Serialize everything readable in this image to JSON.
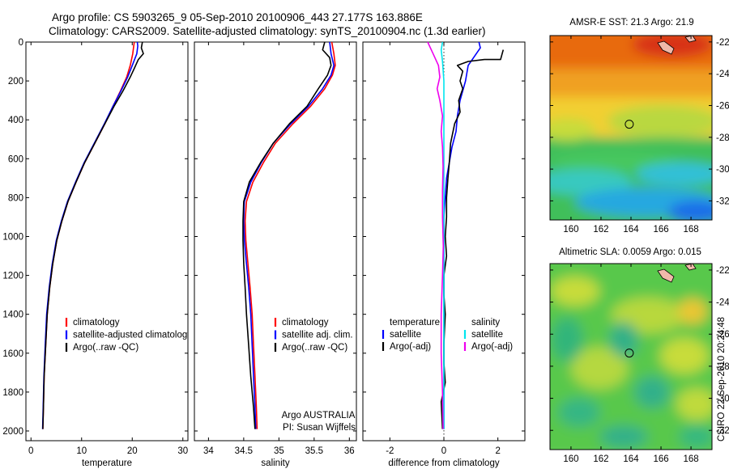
{
  "figure": {
    "title_line1": "Argo profile: CS 5903265_9 05-Sep-2010 20100906_443 27.177S 163.886E",
    "title_line2": "Climatology: CARS2009. Satellite-adjusted climatology: synTS_20100904.nc (1.3d earlier)",
    "side_label": "CSIRO 22-Sep-2010 20:24:48",
    "annotation_line1": "Argo AUSTRALIA",
    "annotation_line2": "PI: Susan Wijffels",
    "colors": {
      "climatology": "#ff0000",
      "satellite": "#0000ff",
      "argo": "#000000",
      "sat_salinity": "#00e5ee",
      "argo_salinity": "#ee00ee"
    }
  },
  "chart_data": [
    {
      "type": "line",
      "name": "temperature-panel",
      "xlabel": "temperature",
      "ylabel": "",
      "xlim": [
        -1,
        31
      ],
      "ylim": [
        2050,
        0
      ],
      "xticks": [
        "0",
        "10",
        "20",
        "30"
      ],
      "yticks": [
        "0",
        "200",
        "400",
        "600",
        "800",
        "1000",
        "1200",
        "1400",
        "1600",
        "1800",
        "2000"
      ],
      "legend": [
        "climatology",
        "satellite-adjusted climatology",
        "Argo(..raw -QC)"
      ],
      "legend_position": "bottom-left",
      "series": [
        {
          "name": "climatology",
          "color": "#ff0000",
          "points": [
            [
              20.4,
              0
            ],
            [
              20.3,
              20
            ],
            [
              20.1,
              60
            ],
            [
              19.6,
              120
            ],
            [
              18.9,
              180
            ],
            [
              17.7,
              250
            ],
            [
              16.2,
              330
            ],
            [
              14.6,
              420
            ],
            [
              12.6,
              520
            ],
            [
              10.6,
              620
            ],
            [
              8.9,
              720
            ],
            [
              7.3,
              820
            ],
            [
              6.1,
              920
            ],
            [
              5.1,
              1020
            ],
            [
              4.3,
              1140
            ],
            [
              3.7,
              1260
            ],
            [
              3.2,
              1400
            ],
            [
              2.9,
              1560
            ],
            [
              2.6,
              1720
            ],
            [
              2.45,
              1880
            ],
            [
              2.35,
              1990
            ]
          ]
        },
        {
          "name": "satellite-adjusted climatology",
          "color": "#0000ff",
          "points": [
            [
              21.0,
              0
            ],
            [
              21.1,
              20
            ],
            [
              20.9,
              60
            ],
            [
              20.0,
              120
            ],
            [
              19.1,
              180
            ],
            [
              17.8,
              250
            ],
            [
              16.2,
              330
            ],
            [
              14.5,
              420
            ],
            [
              12.5,
              520
            ],
            [
              10.5,
              620
            ],
            [
              8.8,
              720
            ],
            [
              7.2,
              820
            ],
            [
              6.0,
              920
            ],
            [
              5.0,
              1020
            ],
            [
              4.2,
              1140
            ],
            [
              3.6,
              1260
            ],
            [
              3.1,
              1400
            ],
            [
              2.8,
              1560
            ],
            [
              2.55,
              1720
            ],
            [
              2.4,
              1880
            ],
            [
              2.3,
              1990
            ]
          ]
        },
        {
          "name": "Argo(..raw -QC)",
          "color": "#000000",
          "points": [
            [
              22.0,
              0
            ],
            [
              21.8,
              30
            ],
            [
              22.2,
              60
            ],
            [
              21.2,
              90
            ],
            [
              20.5,
              130
            ],
            [
              19.6,
              180
            ],
            [
              18.2,
              250
            ],
            [
              16.4,
              330
            ],
            [
              14.6,
              420
            ],
            [
              12.6,
              520
            ],
            [
              10.6,
              620
            ],
            [
              8.9,
              720
            ],
            [
              7.3,
              820
            ],
            [
              6.1,
              920
            ],
            [
              5.1,
              1020
            ],
            [
              4.3,
              1140
            ],
            [
              3.7,
              1260
            ],
            [
              3.2,
              1400
            ],
            [
              2.9,
              1560
            ],
            [
              2.6,
              1720
            ],
            [
              2.45,
              1880
            ],
            [
              2.35,
              1990
            ]
          ]
        }
      ]
    },
    {
      "type": "line",
      "name": "salinity-panel",
      "xlabel": "salinity",
      "ylabel": "",
      "xlim": [
        33.8,
        36.1
      ],
      "ylim": [
        2050,
        0
      ],
      "xticks": [
        "34",
        "34.5",
        "35",
        "35.5",
        "36"
      ],
      "legend": [
        "climatology",
        "satellite adj. clim.",
        "Argo(..raw -QC)"
      ],
      "legend_position": "bottom-right",
      "series": [
        {
          "name": "climatology",
          "color": "#ff0000",
          "points": [
            [
              35.75,
              0
            ],
            [
              35.78,
              60
            ],
            [
              35.8,
              120
            ],
            [
              35.76,
              170
            ],
            [
              35.65,
              240
            ],
            [
              35.45,
              330
            ],
            [
              35.2,
              420
            ],
            [
              34.95,
              520
            ],
            [
              34.78,
              620
            ],
            [
              34.63,
              720
            ],
            [
              34.54,
              820
            ],
            [
              34.52,
              920
            ],
            [
              34.53,
              1020
            ],
            [
              34.56,
              1140
            ],
            [
              34.59,
              1260
            ],
            [
              34.62,
              1400
            ],
            [
              34.64,
              1560
            ],
            [
              34.66,
              1720
            ],
            [
              34.68,
              1880
            ],
            [
              34.69,
              1990
            ]
          ]
        },
        {
          "name": "satellite adj. clim.",
          "color": "#0000ff",
          "points": [
            [
              35.72,
              0
            ],
            [
              35.74,
              60
            ],
            [
              35.78,
              120
            ],
            [
              35.74,
              170
            ],
            [
              35.62,
              240
            ],
            [
              35.42,
              330
            ],
            [
              35.17,
              420
            ],
            [
              34.92,
              520
            ],
            [
              34.75,
              620
            ],
            [
              34.6,
              720
            ],
            [
              34.51,
              820
            ],
            [
              34.5,
              920
            ],
            [
              34.51,
              1020
            ],
            [
              34.54,
              1140
            ],
            [
              34.57,
              1260
            ],
            [
              34.6,
              1400
            ],
            [
              34.62,
              1560
            ],
            [
              34.64,
              1720
            ],
            [
              34.66,
              1880
            ],
            [
              34.67,
              1990
            ]
          ]
        },
        {
          "name": "Argo(..raw -QC)",
          "color": "#000000",
          "points": [
            [
              35.65,
              0
            ],
            [
              35.62,
              40
            ],
            [
              35.72,
              80
            ],
            [
              35.74,
              120
            ],
            [
              35.69,
              170
            ],
            [
              35.56,
              240
            ],
            [
              35.4,
              330
            ],
            [
              35.15,
              420
            ],
            [
              34.92,
              520
            ],
            [
              34.74,
              620
            ],
            [
              34.58,
              720
            ],
            [
              34.5,
              820
            ],
            [
              34.49,
              920
            ],
            [
              34.49,
              1020
            ],
            [
              34.5,
              1140
            ],
            [
              34.52,
              1260
            ],
            [
              34.54,
              1400
            ],
            [
              34.57,
              1560
            ],
            [
              34.6,
              1720
            ],
            [
              34.64,
              1880
            ],
            [
              34.66,
              1990
            ]
          ]
        }
      ]
    },
    {
      "type": "line",
      "name": "difference-panel",
      "xlabel": "difference from climatology",
      "ylabel": "",
      "xlim": [
        -3,
        3
      ],
      "ylim": [
        2050,
        0
      ],
      "xticks": [
        "-2",
        "0",
        "2"
      ],
      "legend_left_header": "temperature",
      "legend_right_header": "salinity",
      "legend": [
        "satellite",
        "Argo(-adj)",
        "satellite",
        "Argo(-adj)"
      ],
      "legend_position": "bottom",
      "series": [
        {
          "name": "satellite",
          "group": "temperature",
          "color": "#0000ff",
          "points": [
            [
              1.3,
              0
            ],
            [
              1.35,
              30
            ],
            [
              1.2,
              60
            ],
            [
              0.9,
              120
            ],
            [
              0.8,
              200
            ],
            [
              0.6,
              300
            ],
            [
              0.5,
              380
            ],
            [
              0.45,
              460
            ],
            [
              0.3,
              540
            ],
            [
              0.2,
              620
            ],
            [
              0.1,
              700
            ],
            [
              0.05,
              800
            ],
            [
              0.0,
              900
            ],
            [
              0.0,
              1000
            ],
            [
              0.0,
              1990
            ]
          ]
        },
        {
          "name": "Argo(-adj)",
          "group": "temperature",
          "color": "#000000",
          "points": [
            [
              2.2,
              40
            ],
            [
              2.1,
              90
            ],
            [
              1.5,
              90
            ],
            [
              0.9,
              100
            ],
            [
              0.5,
              120
            ],
            [
              0.7,
              150
            ],
            [
              0.6,
              200
            ],
            [
              0.7,
              240
            ],
            [
              0.55,
              300
            ],
            [
              0.6,
              360
            ],
            [
              0.4,
              420
            ],
            [
              0.25,
              520
            ],
            [
              0.2,
              620
            ],
            [
              0.15,
              700
            ],
            [
              0.1,
              800
            ],
            [
              0.1,
              900
            ],
            [
              0.05,
              1000
            ],
            [
              0.1,
              1100
            ],
            [
              0.0,
              1200
            ],
            [
              0.0,
              1300
            ],
            [
              0.05,
              1400
            ],
            [
              0.0,
              1550
            ],
            [
              0.0,
              1650
            ],
            [
              0.05,
              1750
            ],
            [
              -0.1,
              1850
            ],
            [
              -0.05,
              1990
            ]
          ]
        },
        {
          "name": "satellite",
          "group": "salinity",
          "color": "#00e5ee",
          "points": [
            [
              -0.05,
              0
            ],
            [
              -0.1,
              40
            ],
            [
              -0.05,
              100
            ],
            [
              0.0,
              200
            ],
            [
              0.0,
              300
            ],
            [
              0.0,
              1990
            ]
          ]
        },
        {
          "name": "Argo(-adj)",
          "group": "salinity",
          "color": "#ee00ee",
          "points": [
            [
              -0.6,
              0
            ],
            [
              -0.4,
              60
            ],
            [
              -0.2,
              120
            ],
            [
              -0.15,
              180
            ],
            [
              -0.25,
              240
            ],
            [
              -0.15,
              300
            ],
            [
              -0.05,
              380
            ],
            [
              -0.1,
              460
            ],
            [
              -0.05,
              540
            ],
            [
              -0.03,
              640
            ],
            [
              -0.05,
              760
            ],
            [
              -0.05,
              900
            ],
            [
              -0.02,
              1050
            ],
            [
              -0.05,
              1200
            ],
            [
              -0.1,
              1400
            ],
            [
              -0.1,
              1600
            ],
            [
              -0.05,
              1800
            ],
            [
              -0.03,
              1990
            ]
          ]
        }
      ]
    },
    {
      "type": "heatmap",
      "name": "sst-map",
      "title": "AMSR-E SST: 21.3 Argo: 21.9",
      "xlim": [
        158.6,
        169.4
      ],
      "ylim": [
        -33.2,
        -21.6
      ],
      "xticks": [
        "160",
        "162",
        "164",
        "166",
        "168"
      ],
      "yticks": [
        "-22",
        "-24",
        "-26",
        "-28",
        "-30",
        "-32"
      ],
      "marker": {
        "lon": 163.886,
        "lat": -27.177
      }
    },
    {
      "type": "heatmap",
      "name": "sla-map",
      "title": "Altimetric SLA: 0.0059 Argo: 0.015",
      "xlim": [
        158.6,
        169.4
      ],
      "ylim": [
        -33.2,
        -21.6
      ],
      "xticks": [
        "160",
        "162",
        "164",
        "166",
        "168"
      ],
      "yticks": [
        "-22",
        "-24",
        "-26",
        "-28",
        "-30",
        "-32"
      ],
      "marker": {
        "lon": 163.886,
        "lat": -27.177
      }
    }
  ]
}
